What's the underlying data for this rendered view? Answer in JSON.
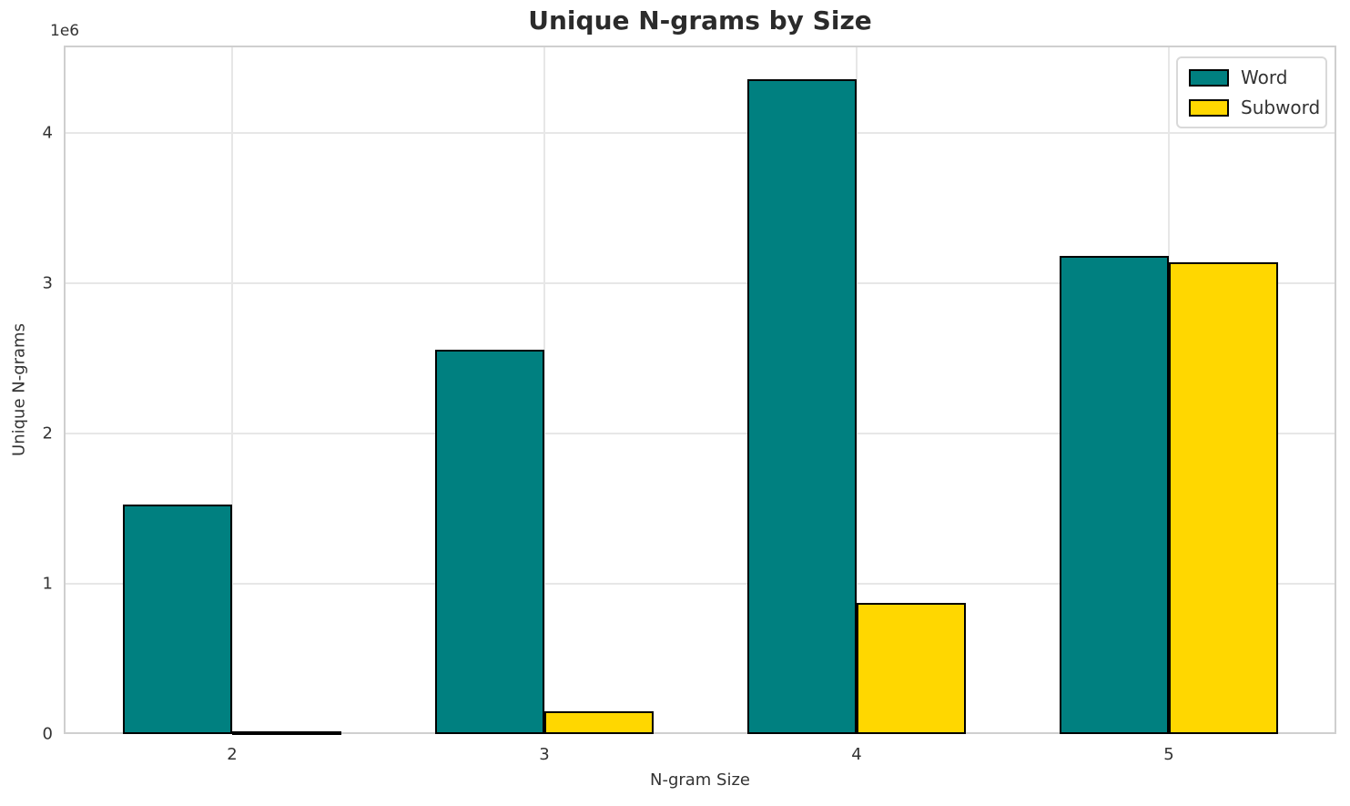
{
  "chart_data": {
    "type": "bar",
    "title": "Unique N-grams by Size",
    "xlabel": "N-gram Size",
    "ylabel": "Unique N-grams",
    "y_offset_label": "1e6",
    "categories": [
      "2",
      "3",
      "4",
      "5"
    ],
    "series": [
      {
        "name": "Word",
        "color": "#008080",
        "values": [
          1530000,
          2560000,
          4360000,
          3180000
        ]
      },
      {
        "name": "Subword",
        "color": "#FFD700",
        "values": [
          20000,
          150000,
          870000,
          3140000
        ]
      }
    ],
    "ylim": [
      0,
      4582000
    ],
    "yticks": [
      0,
      1000000,
      2000000,
      3000000,
      4000000
    ],
    "ytick_labels": [
      "0",
      "1",
      "2",
      "3",
      "4"
    ],
    "grid": true,
    "legend_position": "upper right",
    "bar_edge_color": "#000000",
    "spine_color": "#cfcfcf",
    "grid_color": "#e7e7e7"
  }
}
